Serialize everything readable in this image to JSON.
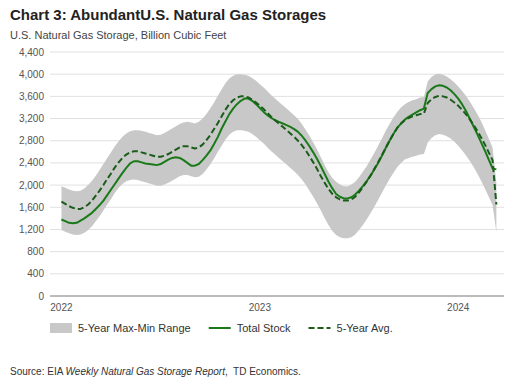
{
  "chart_data": {
    "type": "line",
    "title": "Chart 3: AbundantU.S. Natural Gas Storages",
    "subtitle": "U.S. Natural Gas Storage, Billion Cubic Feet",
    "source": [
      "Source: EIA ",
      "Weekly Natural Gas Storage Report",
      ",  TD Economics."
    ],
    "categories": [
      "2022",
      null,
      null,
      null,
      null,
      null,
      null,
      null,
      null,
      null,
      null,
      null,
      null,
      null,
      null,
      null,
      null,
      null,
      null,
      null,
      null,
      null,
      null,
      null,
      null,
      null,
      null,
      null,
      null,
      null,
      null,
      null,
      null,
      null,
      null,
      null,
      null,
      null,
      null,
      null,
      null,
      null,
      null,
      null,
      null,
      null,
      null,
      null,
      null,
      null,
      null,
      null,
      "2023",
      null,
      null,
      null,
      null,
      null,
      null,
      null,
      null,
      null,
      null,
      null,
      null,
      null,
      null,
      null,
      null,
      null,
      null,
      null,
      null,
      null,
      null,
      null,
      null,
      null,
      null,
      null,
      null,
      null,
      null,
      null,
      null,
      null,
      null,
      null,
      null,
      null,
      null,
      null,
      null,
      null,
      null,
      null,
      null,
      null,
      null,
      null,
      null,
      null,
      null,
      null,
      "2024",
      null,
      null,
      null,
      null,
      null,
      null,
      null,
      null,
      null,
      null
    ],
    "ylim": [
      0,
      4400
    ],
    "yticks": [
      0,
      400,
      800,
      {
        "value": 1200,
        "label": "1,200"
      },
      {
        "value": 1600,
        "label": "1,600"
      },
      {
        "value": 2000,
        "label": "2,000"
      },
      {
        "value": 2400,
        "label": "2,400"
      },
      {
        "value": 2800,
        "label": "2,800"
      },
      {
        "value": 3200,
        "label": "3,200"
      },
      {
        "value": 3600,
        "label": "3,600"
      },
      {
        "value": 4000,
        "label": "4,000"
      },
      {
        "value": 4400,
        "label": "4,400"
      }
    ],
    "grid": true,
    "legend": "lower left",
    "series": [
      {
        "name": "5-Year Max-Min Range",
        "type": "range",
        "color": "#c8c8c8",
        "low": [
          1190,
          1160,
          1130,
          1110,
          1100,
          1110,
          1140,
          1190,
          1260,
          1350,
          1440,
          1540,
          1650,
          1750,
          1860,
          1950,
          2020,
          2070,
          2090,
          2100,
          2090,
          2070,
          2050,
          2030,
          2010,
          1990,
          1990,
          2010,
          2040,
          2080,
          2120,
          2160,
          2180,
          2180,
          2160,
          2140,
          2150,
          2200,
          2280,
          2370,
          2480,
          2600,
          2710,
          2820,
          2910,
          2960,
          2990,
          2990,
          2980,
          2960,
          2920,
          2870,
          2810,
          2750,
          2680,
          2610,
          2550,
          2490,
          2430,
          2370,
          2310,
          2250,
          2180,
          2100,
          2010,
          1900,
          1790,
          1670,
          1540,
          1400,
          1280,
          1170,
          1100,
          1060,
          1040,
          1040,
          1060,
          1110,
          1190,
          1280,
          1380,
          1490,
          1610,
          1730,
          1860,
          1990,
          2110,
          2220,
          2320,
          2400,
          2460,
          2490,
          2510,
          2530,
          2550,
          2560,
          2770,
          2850,
          2900,
          2920,
          2910,
          2880,
          2840,
          2780,
          2710,
          2630,
          2540,
          2440,
          2330,
          2210,
          2080,
          1940,
          1790,
          1640,
          1155
        ],
        "high": [
          1980,
          1950,
          1920,
          1900,
          1890,
          1900,
          1940,
          2000,
          2080,
          2170,
          2270,
          2380,
          2490,
          2590,
          2700,
          2790,
          2870,
          2930,
          2970,
          2990,
          2990,
          2980,
          2960,
          2940,
          2920,
          2900,
          2910,
          2940,
          2980,
          3020,
          3060,
          3100,
          3130,
          3140,
          3130,
          3110,
          3140,
          3200,
          3280,
          3380,
          3490,
          3610,
          3730,
          3840,
          3920,
          3970,
          4000,
          4000,
          3990,
          3970,
          3930,
          3880,
          3820,
          3760,
          3690,
          3620,
          3560,
          3500,
          3440,
          3380,
          3320,
          3260,
          3190,
          3100,
          3000,
          2890,
          2770,
          2640,
          2500,
          2360,
          2230,
          2130,
          2060,
          2010,
          1980,
          1980,
          2010,
          2060,
          2140,
          2240,
          2340,
          2460,
          2580,
          2710,
          2840,
          2980,
          3100,
          3220,
          3320,
          3400,
          3460,
          3500,
          3530,
          3550,
          3580,
          3590,
          3870,
          3950,
          4000,
          4010,
          3990,
          3960,
          3910,
          3850,
          3780,
          3700,
          3610,
          3510,
          3400,
          3280,
          3150,
          3000,
          2840,
          2680,
          2045
        ]
      },
      {
        "name": "Total Stock",
        "type": "line",
        "color": "#1a7a1a",
        "line_style": "solid",
        "values": [
          1380,
          1350,
          1320,
          1310,
          1320,
          1360,
          1400,
          1450,
          1500,
          1570,
          1640,
          1720,
          1820,
          1920,
          2020,
          2120,
          2220,
          2310,
          2390,
          2430,
          2430,
          2410,
          2390,
          2380,
          2370,
          2360,
          2380,
          2420,
          2460,
          2490,
          2500,
          2490,
          2450,
          2400,
          2350,
          2350,
          2380,
          2450,
          2530,
          2620,
          2740,
          2870,
          3020,
          3150,
          3280,
          3380,
          3460,
          3520,
          3560,
          3560,
          3520,
          3460,
          3390,
          3320,
          3260,
          3210,
          3170,
          3140,
          3110,
          3080,
          3050,
          3010,
          2960,
          2890,
          2800,
          2700,
          2590,
          2470,
          2340,
          2200,
          2060,
          1940,
          1840,
          1790,
          1760,
          1760,
          1780,
          1830,
          1900,
          1980,
          2070,
          2170,
          2280,
          2400,
          2530,
          2670,
          2800,
          2920,
          3030,
          3110,
          3180,
          3230,
          3270,
          3310,
          3350,
          3380,
          3660,
          3730,
          3780,
          3800,
          3790,
          3760,
          3710,
          3640,
          3560,
          3460,
          3340,
          3200,
          3060,
          2920,
          2770,
          2620,
          2460,
          2300,
          2283
        ]
      },
      {
        "name": "5-Year Avg.",
        "type": "line",
        "color": "#1a5c1a",
        "line_style": "dashed",
        "values": [
          1700,
          1660,
          1620,
          1590,
          1570,
          1570,
          1600,
          1650,
          1720,
          1810,
          1900,
          2000,
          2110,
          2210,
          2320,
          2410,
          2490,
          2550,
          2590,
          2610,
          2610,
          2590,
          2570,
          2550,
          2530,
          2510,
          2510,
          2530,
          2560,
          2600,
          2640,
          2680,
          2700,
          2700,
          2680,
          2660,
          2680,
          2730,
          2810,
          2900,
          3010,
          3120,
          3240,
          3360,
          3460,
          3530,
          3580,
          3600,
          3600,
          3580,
          3540,
          3490,
          3430,
          3370,
          3300,
          3230,
          3170,
          3110,
          3050,
          2990,
          2930,
          2870,
          2800,
          2720,
          2630,
          2520,
          2410,
          2290,
          2160,
          2040,
          1930,
          1840,
          1780,
          1740,
          1720,
          1720,
          1740,
          1790,
          1870,
          1960,
          2060,
          2170,
          2290,
          2410,
          2540,
          2670,
          2800,
          2920,
          3030,
          3110,
          3170,
          3210,
          3240,
          3260,
          3280,
          3290,
          3480,
          3550,
          3590,
          3610,
          3600,
          3580,
          3540,
          3490,
          3430,
          3360,
          3280,
          3190,
          3090,
          2980,
          2860,
          2730,
          2590,
          2450,
          1650
        ]
      }
    ]
  }
}
